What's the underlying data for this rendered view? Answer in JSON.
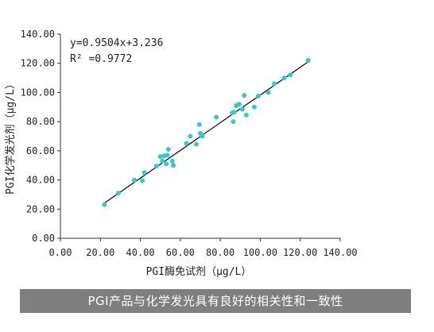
{
  "caption": "PGI产品与化学发光具有良好的相关性和一致性",
  "chart_data": {
    "type": "scatter",
    "xlabel": "PGI酶免试剂（μg/L）",
    "ylabel": "PGI化学发光剂（μg/L）",
    "xlim": [
      0,
      140
    ],
    "ylim": [
      0,
      140
    ],
    "x_ticks": [
      "0.00",
      "20.00",
      "40.00",
      "60.00",
      "80.00",
      "100.00",
      "120.00",
      "140.00"
    ],
    "y_ticks": [
      "0.00",
      "20.00",
      "40.00",
      "60.00",
      "80.00",
      "100.00",
      "120.00",
      "140.00"
    ],
    "grid": false,
    "equation": "y=0.9504x+3.236",
    "r_squared": "R² =0.9772",
    "trendline": {
      "slope": 0.9504,
      "intercept": 3.236,
      "x_range": [
        22,
        124
      ],
      "color": "#000000"
    },
    "point_color": "#3cc6c6",
    "points": [
      {
        "x": 22,
        "y": 23
      },
      {
        "x": 29,
        "y": 31
      },
      {
        "x": 37,
        "y": 40
      },
      {
        "x": 41,
        "y": 39.5
      },
      {
        "x": 42,
        "y": 45
      },
      {
        "x": 48,
        "y": 49.5
      },
      {
        "x": 50,
        "y": 56
      },
      {
        "x": 51,
        "y": 53
      },
      {
        "x": 52,
        "y": 56.5
      },
      {
        "x": 53,
        "y": 51
      },
      {
        "x": 53.5,
        "y": 57
      },
      {
        "x": 54,
        "y": 61
      },
      {
        "x": 56,
        "y": 53
      },
      {
        "x": 56.5,
        "y": 50
      },
      {
        "x": 63,
        "y": 65
      },
      {
        "x": 65,
        "y": 70
      },
      {
        "x": 68,
        "y": 64.5
      },
      {
        "x": 69.5,
        "y": 78
      },
      {
        "x": 70,
        "y": 72
      },
      {
        "x": 71,
        "y": 70
      },
      {
        "x": 78,
        "y": 83
      },
      {
        "x": 86,
        "y": 86
      },
      {
        "x": 86.5,
        "y": 80
      },
      {
        "x": 87,
        "y": 86.5
      },
      {
        "x": 88,
        "y": 91
      },
      {
        "x": 89.5,
        "y": 92
      },
      {
        "x": 91,
        "y": 88.5
      },
      {
        "x": 92,
        "y": 98
      },
      {
        "x": 93,
        "y": 84.5
      },
      {
        "x": 97,
        "y": 90
      },
      {
        "x": 99,
        "y": 97.5
      },
      {
        "x": 104,
        "y": 100
      },
      {
        "x": 107,
        "y": 106
      },
      {
        "x": 112,
        "y": 110
      },
      {
        "x": 115,
        "y": 112
      },
      {
        "x": 124,
        "y": 122
      }
    ]
  }
}
